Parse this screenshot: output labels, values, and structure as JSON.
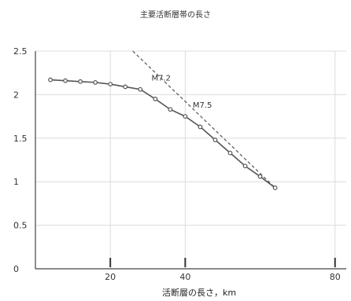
{
  "chart_data": {
    "type": "line",
    "title": "主要活断層帯の長さ",
    "xlabel": "活断層の長さ，km",
    "ylabel": "",
    "xlim": [
      0,
      83
    ],
    "ylim": [
      0,
      2.5
    ],
    "x_ticks": [
      20,
      40,
      80
    ],
    "y_ticks": [
      0,
      0.5,
      1,
      1.5,
      2,
      2.5
    ],
    "y_tick_labels": [
      "0",
      "0.5",
      "1",
      "1.5",
      "2",
      "2.5"
    ],
    "grid": true,
    "series": [
      {
        "style": "solid-with-markers",
        "x": [
          4,
          8,
          12,
          16,
          20,
          24,
          28,
          32,
          36,
          40,
          44,
          48,
          52,
          56,
          60,
          64
        ],
        "y": [
          2.17,
          2.16,
          2.15,
          2.14,
          2.12,
          2.09,
          2.06,
          1.95,
          1.83,
          1.75,
          1.63,
          1.48,
          1.33,
          1.18,
          1.06,
          0.93
        ]
      },
      {
        "style": "dashed",
        "x": [
          26,
          64
        ],
        "y": [
          2.5,
          0.93
        ]
      }
    ],
    "annotations": [
      {
        "text": "M7.2",
        "x": 31,
        "y": 2.16
      },
      {
        "text": "M7.5",
        "x": 42,
        "y": 1.85
      }
    ]
  }
}
